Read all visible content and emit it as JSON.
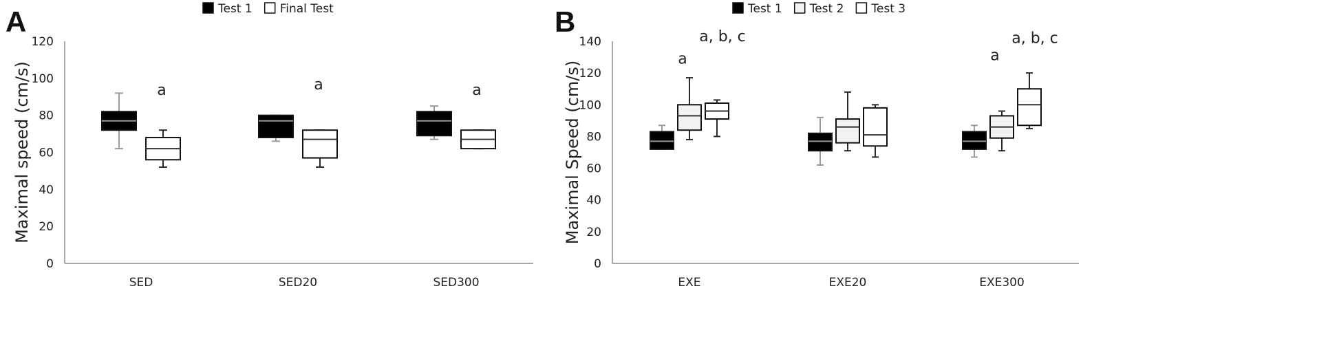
{
  "chart_data": [
    {
      "type": "box",
      "panel": "A",
      "ylabel": "Maximal speed (cm/s)",
      "xlabel": "",
      "ylim": [
        0,
        120
      ],
      "yticks": [
        0,
        20,
        40,
        60,
        80,
        100,
        120
      ],
      "grid": false,
      "legend_position": "top",
      "categories": [
        "SED",
        "SED20",
        "SED300"
      ],
      "series": [
        {
          "name": "Test 1",
          "fill": "#000000",
          "boxes": [
            {
              "min": 62,
              "q1": 72,
              "median": 77,
              "q3": 82,
              "max": 92
            },
            {
              "min": 66,
              "q1": 68,
              "median": 77,
              "q3": 80,
              "max": 80
            },
            {
              "min": 67,
              "q1": 69,
              "median": 77,
              "q3": 82,
              "max": 85
            }
          ]
        },
        {
          "name": "Final Test",
          "fill": "#ffffff",
          "boxes": [
            {
              "min": 52,
              "q1": 56,
              "median": 62,
              "q3": 68,
              "max": 72
            },
            {
              "min": 52,
              "q1": 57,
              "median": 67,
              "q3": 72,
              "max": 72
            },
            {
              "min": 62,
              "q1": 62,
              "median": 67,
              "q3": 72,
              "max": 72
            }
          ]
        }
      ],
      "annotations": [
        {
          "text": "a",
          "category": "SED",
          "y": 91
        },
        {
          "text": "a",
          "category": "SED20",
          "y": 94
        },
        {
          "text": "a",
          "category": "SED300",
          "y": 91
        }
      ]
    },
    {
      "type": "box",
      "panel": "B",
      "ylabel": "Maximal Speed (cm/s)",
      "xlabel": "",
      "ylim": [
        0,
        140
      ],
      "yticks": [
        0,
        20,
        40,
        60,
        80,
        100,
        120,
        140
      ],
      "grid": false,
      "legend_position": "top",
      "categories": [
        "EXE",
        "EXE20",
        "EXE300"
      ],
      "series": [
        {
          "name": "Test 1",
          "fill": "#000000",
          "boxes": [
            {
              "min": 72,
              "q1": 72,
              "median": 77,
              "q3": 83,
              "max": 87
            },
            {
              "min": 62,
              "q1": 71,
              "median": 77,
              "q3": 82,
              "max": 92
            },
            {
              "min": 67,
              "q1": 72,
              "median": 77,
              "q3": 83,
              "max": 87
            }
          ]
        },
        {
          "name": "Test 2",
          "fill": "#f2f2f2",
          "boxes": [
            {
              "min": 78,
              "q1": 84,
              "median": 93,
              "q3": 100,
              "max": 117
            },
            {
              "min": 71,
              "q1": 76,
              "median": 86,
              "q3": 91,
              "max": 108
            },
            {
              "min": 71,
              "q1": 79,
              "median": 86,
              "q3": 93,
              "max": 96
            }
          ]
        },
        {
          "name": "Test 3",
          "fill": "#ffffff",
          "boxes": [
            {
              "min": 80,
              "q1": 91,
              "median": 96,
              "q3": 101,
              "max": 103
            },
            {
              "min": 67,
              "q1": 74,
              "median": 81,
              "q3": 98,
              "max": 100
            },
            {
              "min": 85,
              "q1": 87,
              "median": 100,
              "q3": 110,
              "max": 120
            }
          ]
        }
      ],
      "annotations": [
        {
          "text": "a, b, c",
          "category": "EXE",
          "series": 2,
          "y": 140
        },
        {
          "text": "a",
          "category": "EXE",
          "series": 1,
          "y": 126
        },
        {
          "text": "a, b, c",
          "category": "EXE300",
          "series": 2,
          "y": 139
        },
        {
          "text": "a",
          "category": "EXE300",
          "series": 1,
          "y": 128
        }
      ]
    }
  ]
}
